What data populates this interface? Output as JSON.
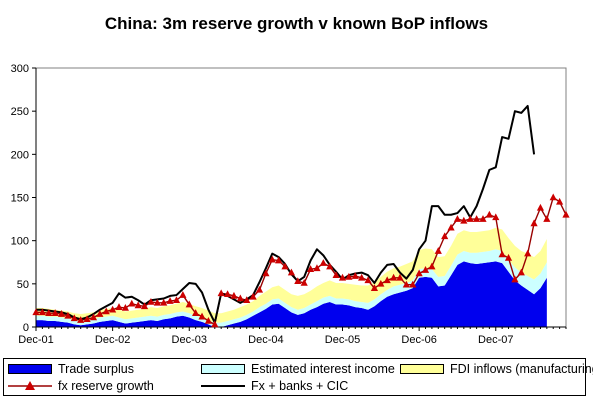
{
  "chart_data": {
    "type": "area",
    "title": "China: 3m reserve growth v known BoP inflows",
    "xlabel": "",
    "ylabel": "",
    "ylim": [
      0,
      300
    ],
    "yticks": [
      0,
      50,
      100,
      150,
      200,
      250,
      300
    ],
    "x_tick_labels": [
      "Dec-01",
      "Dec-02",
      "Dec-03",
      "Dec-04",
      "Dec-05",
      "Dec-06",
      "Dec-07"
    ],
    "x_tick_index": [
      0,
      12,
      24,
      36,
      48,
      60,
      72
    ],
    "grid": false,
    "legend_position": "bottom",
    "stacked_areas": [
      {
        "name": "Trade surplus",
        "color": "#0000ee",
        "values": [
          8,
          8,
          7,
          7,
          6,
          5,
          3,
          2,
          3,
          4,
          6,
          7,
          8,
          6,
          4,
          5,
          6,
          7,
          8,
          7,
          9,
          10,
          12,
          13,
          11,
          8,
          6,
          3,
          0,
          0,
          2,
          4,
          6,
          9,
          13,
          17,
          21,
          26,
          27,
          22,
          17,
          14,
          16,
          20,
          23,
          27,
          29,
          26,
          26,
          25,
          23,
          22,
          20,
          24,
          30,
          35,
          38,
          40,
          42,
          45,
          57,
          58,
          57,
          47,
          48,
          60,
          72,
          76,
          74,
          73,
          74,
          75,
          76,
          74,
          64,
          54,
          48,
          43,
          38,
          45,
          57
        ]
      },
      {
        "name": "Estimated interest income",
        "color": "#ccffff",
        "values": [
          5,
          5,
          5,
          5,
          5,
          5,
          5,
          5,
          5,
          5,
          5,
          5,
          5,
          5,
          5,
          5,
          5,
          5,
          5,
          5,
          5,
          5,
          5,
          5,
          5,
          5,
          5,
          5,
          5,
          5,
          5,
          5,
          5,
          5,
          5,
          6,
          6,
          6,
          6,
          6,
          6,
          6,
          6,
          6,
          7,
          7,
          7,
          7,
          7,
          7,
          7,
          7,
          8,
          8,
          8,
          8,
          9,
          9,
          9,
          9,
          10,
          10,
          10,
          11,
          11,
          11,
          12,
          12,
          12,
          13,
          13,
          13,
          14,
          14,
          14,
          15,
          15,
          16,
          17,
          17,
          18
        ]
      },
      {
        "name": "FDI inflows (manufacturing)",
        "color": "#ffff99",
        "values": [
          9,
          9,
          9,
          8,
          8,
          8,
          8,
          8,
          8,
          8,
          9,
          9,
          9,
          9,
          9,
          9,
          9,
          9,
          10,
          10,
          10,
          10,
          10,
          11,
          11,
          11,
          11,
          11,
          11,
          11,
          11,
          11,
          12,
          12,
          12,
          13,
          14,
          14,
          15,
          15,
          15,
          16,
          16,
          16,
          17,
          17,
          18,
          18,
          18,
          18,
          19,
          19,
          20,
          20,
          20,
          21,
          21,
          21,
          22,
          22,
          22,
          23,
          23,
          23,
          23,
          23,
          24,
          24,
          24,
          24,
          24,
          24,
          25,
          25,
          25,
          25,
          25,
          26,
          26,
          26,
          27
        ]
      }
    ],
    "lines": [
      {
        "name": "fx reserve growth",
        "color": "#990000",
        "marker": "triangle",
        "marker_color": "#cc0000",
        "values": [
          17,
          17,
          16,
          16,
          15,
          13,
          10,
          8,
          9,
          11,
          15,
          18,
          20,
          23,
          22,
          27,
          25,
          24,
          29,
          28,
          28,
          30,
          31,
          37,
          26,
          16,
          12,
          7,
          3,
          39,
          38,
          36,
          33,
          31,
          35,
          43,
          62,
          78,
          77,
          70,
          63,
          53,
          51,
          67,
          68,
          74,
          70,
          60,
          57,
          58,
          59,
          57,
          54,
          45,
          50,
          54,
          57,
          57,
          49,
          49,
          62,
          66,
          70,
          88,
          105,
          115,
          125,
          123,
          125,
          125,
          125,
          130,
          127,
          84,
          80,
          55,
          63,
          85,
          120,
          138,
          125,
          150,
          145,
          130
        ]
      },
      {
        "name": "Fx + banks + CIC",
        "color": "#000000",
        "marker": "none",
        "values": [
          20,
          20,
          19,
          18,
          17,
          15,
          11,
          9,
          11,
          15,
          20,
          24,
          28,
          39,
          34,
          35,
          31,
          26,
          31,
          32,
          33,
          36,
          37,
          44,
          51,
          50,
          40,
          20,
          5,
          39,
          36,
          32,
          28,
          32,
          37,
          52,
          68,
          85,
          81,
          73,
          61,
          53,
          58,
          77,
          90,
          83,
          72,
          64,
          55,
          60,
          62,
          63,
          60,
          51,
          63,
          72,
          73,
          63,
          56,
          66,
          90,
          100,
          140,
          140,
          130,
          130,
          132,
          140,
          127,
          140,
          160,
          182,
          185,
          220,
          218,
          250,
          248,
          256,
          200
        ]
      }
    ]
  },
  "legend": {
    "trade_surplus": "Trade surplus",
    "interest_income": "Estimated interest income",
    "fdi_inflows": "FDI inflows (manufacturing)",
    "fx_reserve_growth": "fx reserve growth",
    "fx_banks_cic": "Fx + banks + CIC"
  }
}
